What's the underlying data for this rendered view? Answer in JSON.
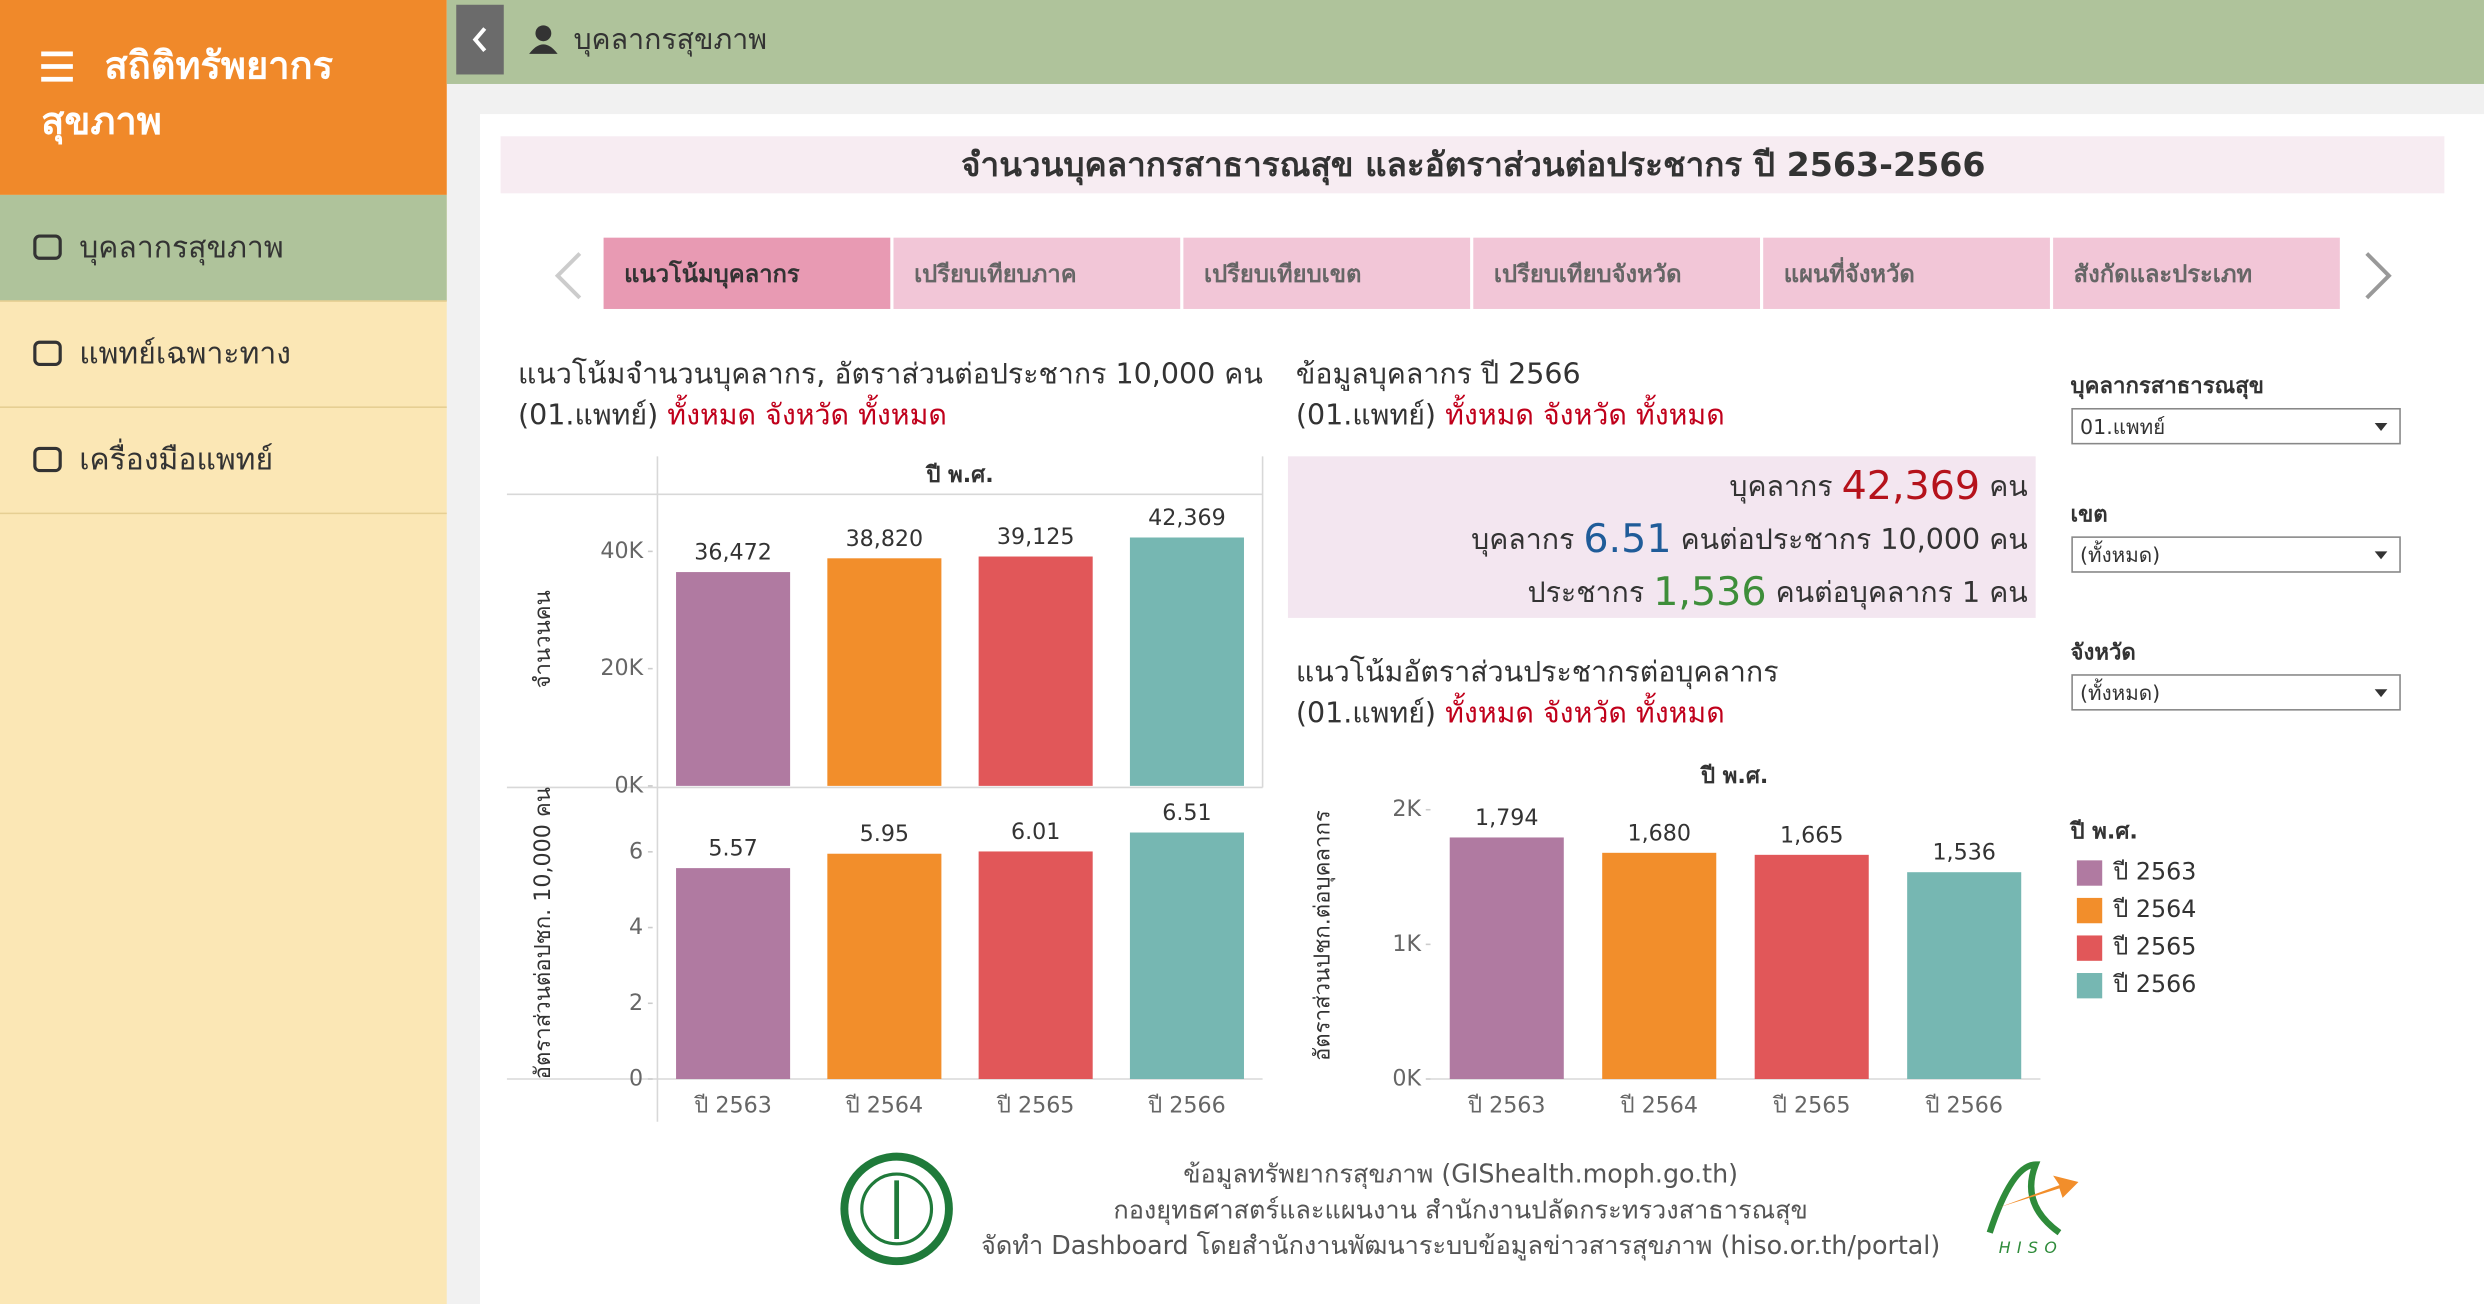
{
  "sidebar": {
    "title_lines": [
      "สถิติทรัพยากร",
      "สุขภาพ"
    ],
    "menu": [
      "บุคลากรสุขภาพ",
      "แพทย์เฉพาะทาง",
      "เครื่องมือแพทย์"
    ],
    "active_menu": 0
  },
  "topbar": {
    "title": "บุคลากรสุขภาพ"
  },
  "dashboard": {
    "title": "จำนวนบุคลากรสาธารณสุข และอัตราส่วนต่อประชากร ปี 2563-2566",
    "tabs": [
      "แนวโน้มบุคลากร",
      "เปรียบเทียบภาค",
      "เปรียบเทียบเขต",
      "เปรียบเทียบจังหวัด",
      "แผนที่จังหวัด",
      "สังกัดและประเภท"
    ],
    "active_tab": 0
  },
  "left_heading": "แนวโน้มจำนวนบุคลากร, อัตราส่วนต่อประชากร 10,000 คน",
  "filter_line": {
    "scope": "(01.แพทย์)",
    "selection": "ทั้งหมด จังหวัด ทั้งหมด"
  },
  "info": {
    "heading": "ข้อมูลบุคลากร ปี 2566",
    "lines": [
      {
        "prefix": "บุคลากร",
        "value": "42,369",
        "suffix": "คน",
        "color": "#b5121b"
      },
      {
        "prefix": "บุคลากร",
        "value": "6.51",
        "suffix": "คนต่อประชากร 10,000 คน",
        "color": "#1f5c99"
      },
      {
        "prefix": "ประชากร",
        "value": "1,536",
        "suffix": "คนต่อบุคลากร 1 คน",
        "color": "#3e8e3a"
      }
    ]
  },
  "right_heading": "แนวโน้มอัตราส่วนประชากรต่อบุคลากร",
  "filters": [
    {
      "label": "บุคลากรสาธารณสุข",
      "value": "01.แพทย์"
    },
    {
      "label": "เขต",
      "value": "(ทั้งหมด)"
    },
    {
      "label": "จังหวัด",
      "value": "(ทั้งหมด)"
    }
  ],
  "legend": {
    "title": "ปี พ.ศ.",
    "items": [
      "ปี 2563",
      "ปี 2564",
      "ปี 2565",
      "ปี 2566"
    ]
  },
  "footer": {
    "lines": [
      "ข้อมูลทรัพยากรสุขภาพ (GIShealth.moph.go.th)",
      "กองยุทธศาสตร์และแผนงาน สำนักงานปลัดกระทรวงสาธารณสุข",
      "จัดทำ Dashboard โดยสำนักงานพัฒนาระบบข้อมูลข่าวสารสุขภาพ (hiso.or.th/portal)"
    ],
    "logo_text": "HISO"
  },
  "chart_data": [
    {
      "type": "bar",
      "header": "ปี พ.ศ.",
      "categories": [
        "ปี 2563",
        "ปี 2564",
        "ปี 2565",
        "ปี 2566"
      ],
      "colors": [
        "#b07aa1",
        "#f28e2b",
        "#e15759",
        "#76b7b2"
      ],
      "panels": [
        {
          "ylabel": "จำนวนคน",
          "values": [
            36472,
            38820,
            39125,
            42369
          ],
          "value_labels": [
            "36,472",
            "38,820",
            "39,125",
            "42,369"
          ],
          "ylim": [
            0,
            50000
          ],
          "yticks": [
            {
              "value": 0,
              "label": "0K"
            },
            {
              "value": 20000,
              "label": "20K"
            },
            {
              "value": 40000,
              "label": "40K"
            }
          ]
        },
        {
          "ylabel": "อัตราส่วนต่อปชก. 10,000 คน",
          "values": [
            5.57,
            5.95,
            6.01,
            6.51
          ],
          "ylim": [
            0,
            7.7
          ],
          "yticks": [
            0,
            2,
            4,
            6
          ]
        }
      ]
    },
    {
      "type": "bar",
      "header": "ปี พ.ศ.",
      "ylabel": "อัตราส่วนปชก.ต่อบุคลากร",
      "categories": [
        "ปี 2563",
        "ปี 2564",
        "ปี 2565",
        "ปี 2566"
      ],
      "colors": [
        "#b07aa1",
        "#f28e2b",
        "#e15759",
        "#76b7b2"
      ],
      "values": [
        1794,
        1680,
        1665,
        1536
      ],
      "value_labels": [
        "1,794",
        "1,680",
        "1,665",
        "1,536"
      ],
      "ylim": [
        0,
        2130
      ],
      "yticks": [
        {
          "value": 0,
          "label": "0K"
        },
        {
          "value": 1000,
          "label": "1K"
        },
        {
          "value": 2000,
          "label": "2K"
        }
      ]
    }
  ]
}
